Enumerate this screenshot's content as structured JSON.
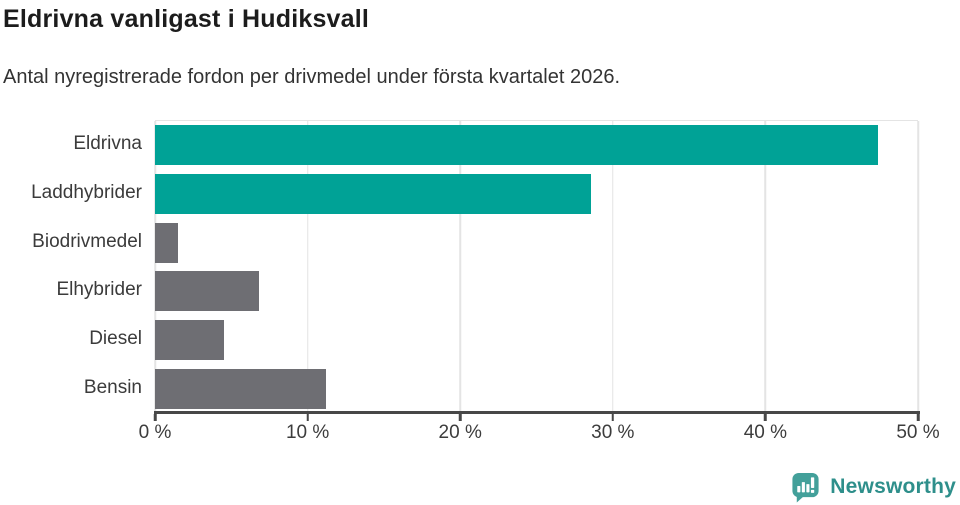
{
  "title": "Eldrivna vanligast i Hudiksvall",
  "subtitle": "Antal nyregistrerade fordon per drivmedel under första kvartalet 2026.",
  "branding": {
    "logo_text": "Newsworthy",
    "logo_icon": "speech-bubble-with-bar-chart-and-exclamation",
    "icon_color": "#43a09a",
    "text_color": "#2e8f8b"
  },
  "colors": {
    "title_text": "#1c1c1c",
    "body_text": "#333333",
    "primary_bar": "#00a296",
    "secondary_bar": "#6e6e73",
    "gridline": "#e4e4e4",
    "axis": "#474747"
  },
  "chart_data": {
    "type": "bar",
    "orientation": "horizontal",
    "title": "Eldrivna vanligast i Hudiksvall",
    "subtitle": "Antal nyregistrerade fordon per drivmedel under första kvartalet 2026.",
    "categories": [
      "Eldrivna",
      "Laddhybrider",
      "Biodrivmedel",
      "Elhybrider",
      "Diesel",
      "Bensin"
    ],
    "values": [
      47.4,
      28.6,
      1.5,
      6.8,
      4.5,
      11.2
    ],
    "unit": "%",
    "bar_colors": [
      "#00a296",
      "#00a296",
      "#6e6e73",
      "#6e6e73",
      "#6e6e73",
      "#6e6e73"
    ],
    "xlabel": "",
    "ylabel": "",
    "xlim": [
      0,
      50
    ],
    "x_ticks": [
      0,
      10,
      20,
      30,
      40,
      50
    ],
    "x_tick_labels": [
      "0 %",
      "10 %",
      "20 %",
      "30 %",
      "40 %",
      "50 %"
    ],
    "grid": true,
    "legend": false
  }
}
